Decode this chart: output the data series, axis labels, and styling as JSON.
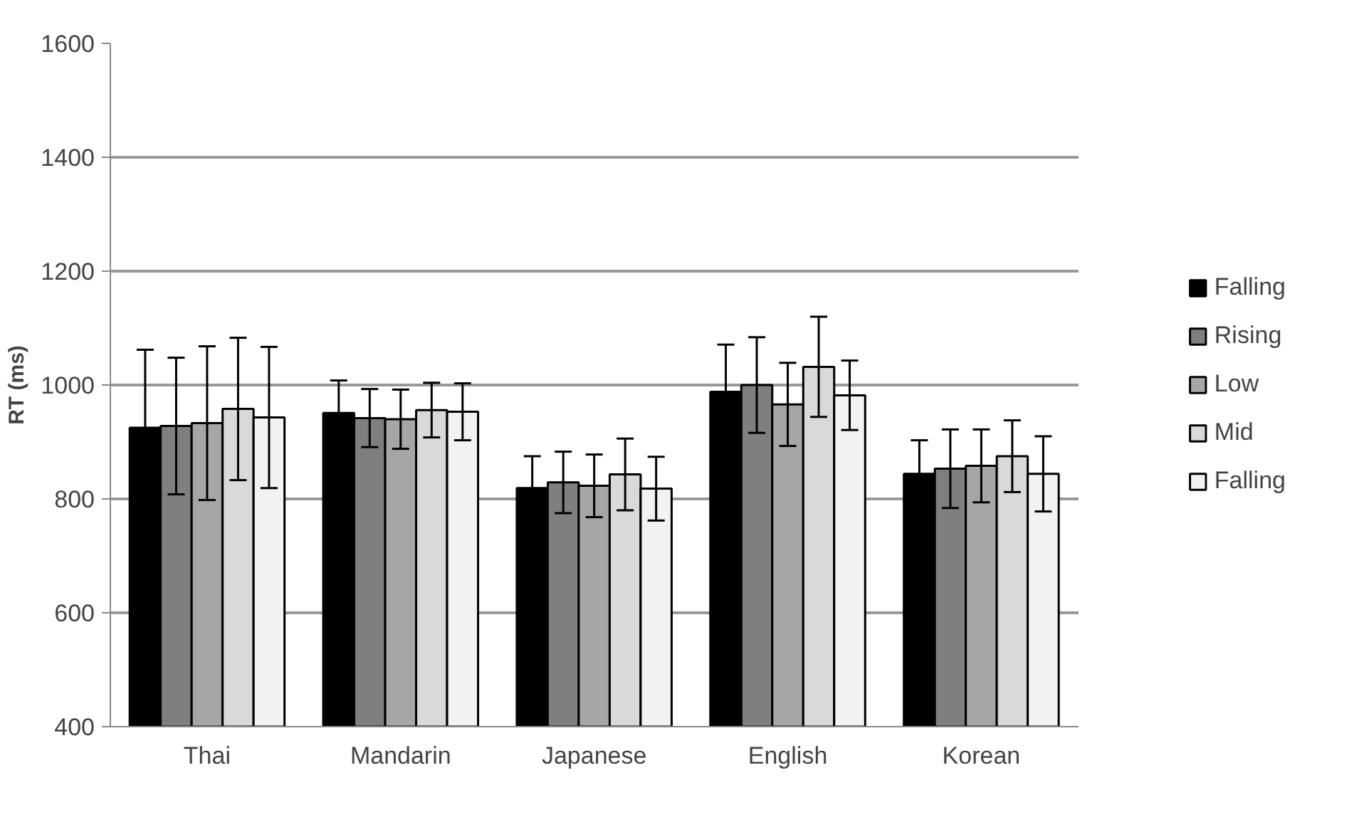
{
  "chart_data": {
    "type": "bar",
    "ylabel": "RT (ms)",
    "categories": [
      "Thai",
      "Mandarin",
      "Japanese",
      "English",
      "Korean"
    ],
    "series": [
      {
        "name": "Falling",
        "color": "#000000",
        "values": [
          925,
          951,
          819,
          988,
          844
        ],
        "errors": [
          137,
          57,
          56,
          83,
          59
        ]
      },
      {
        "name": "Rising",
        "color": "#7f7f7f",
        "values": [
          928,
          942,
          829,
          1000,
          853
        ],
        "errors": [
          120,
          51,
          54,
          84,
          69
        ]
      },
      {
        "name": "Low",
        "color": "#a6a6a6",
        "values": [
          933,
          940,
          823,
          966,
          858
        ],
        "errors": [
          135,
          52,
          55,
          73,
          64
        ]
      },
      {
        "name": "Mid",
        "color": "#d9d9d9",
        "values": [
          958,
          956,
          843,
          1032,
          875
        ],
        "errors": [
          125,
          48,
          63,
          88,
          63
        ]
      },
      {
        "name": "Falling",
        "color": "#f2f2f2",
        "values": [
          943,
          953,
          818,
          982,
          844
        ],
        "errors": [
          124,
          50,
          56,
          61,
          66
        ]
      }
    ],
    "ylim": [
      400,
      1600
    ],
    "yticks": [
      400,
      600,
      800,
      1000,
      1200,
      1400,
      1600
    ],
    "grid": "y",
    "legend": "right"
  }
}
